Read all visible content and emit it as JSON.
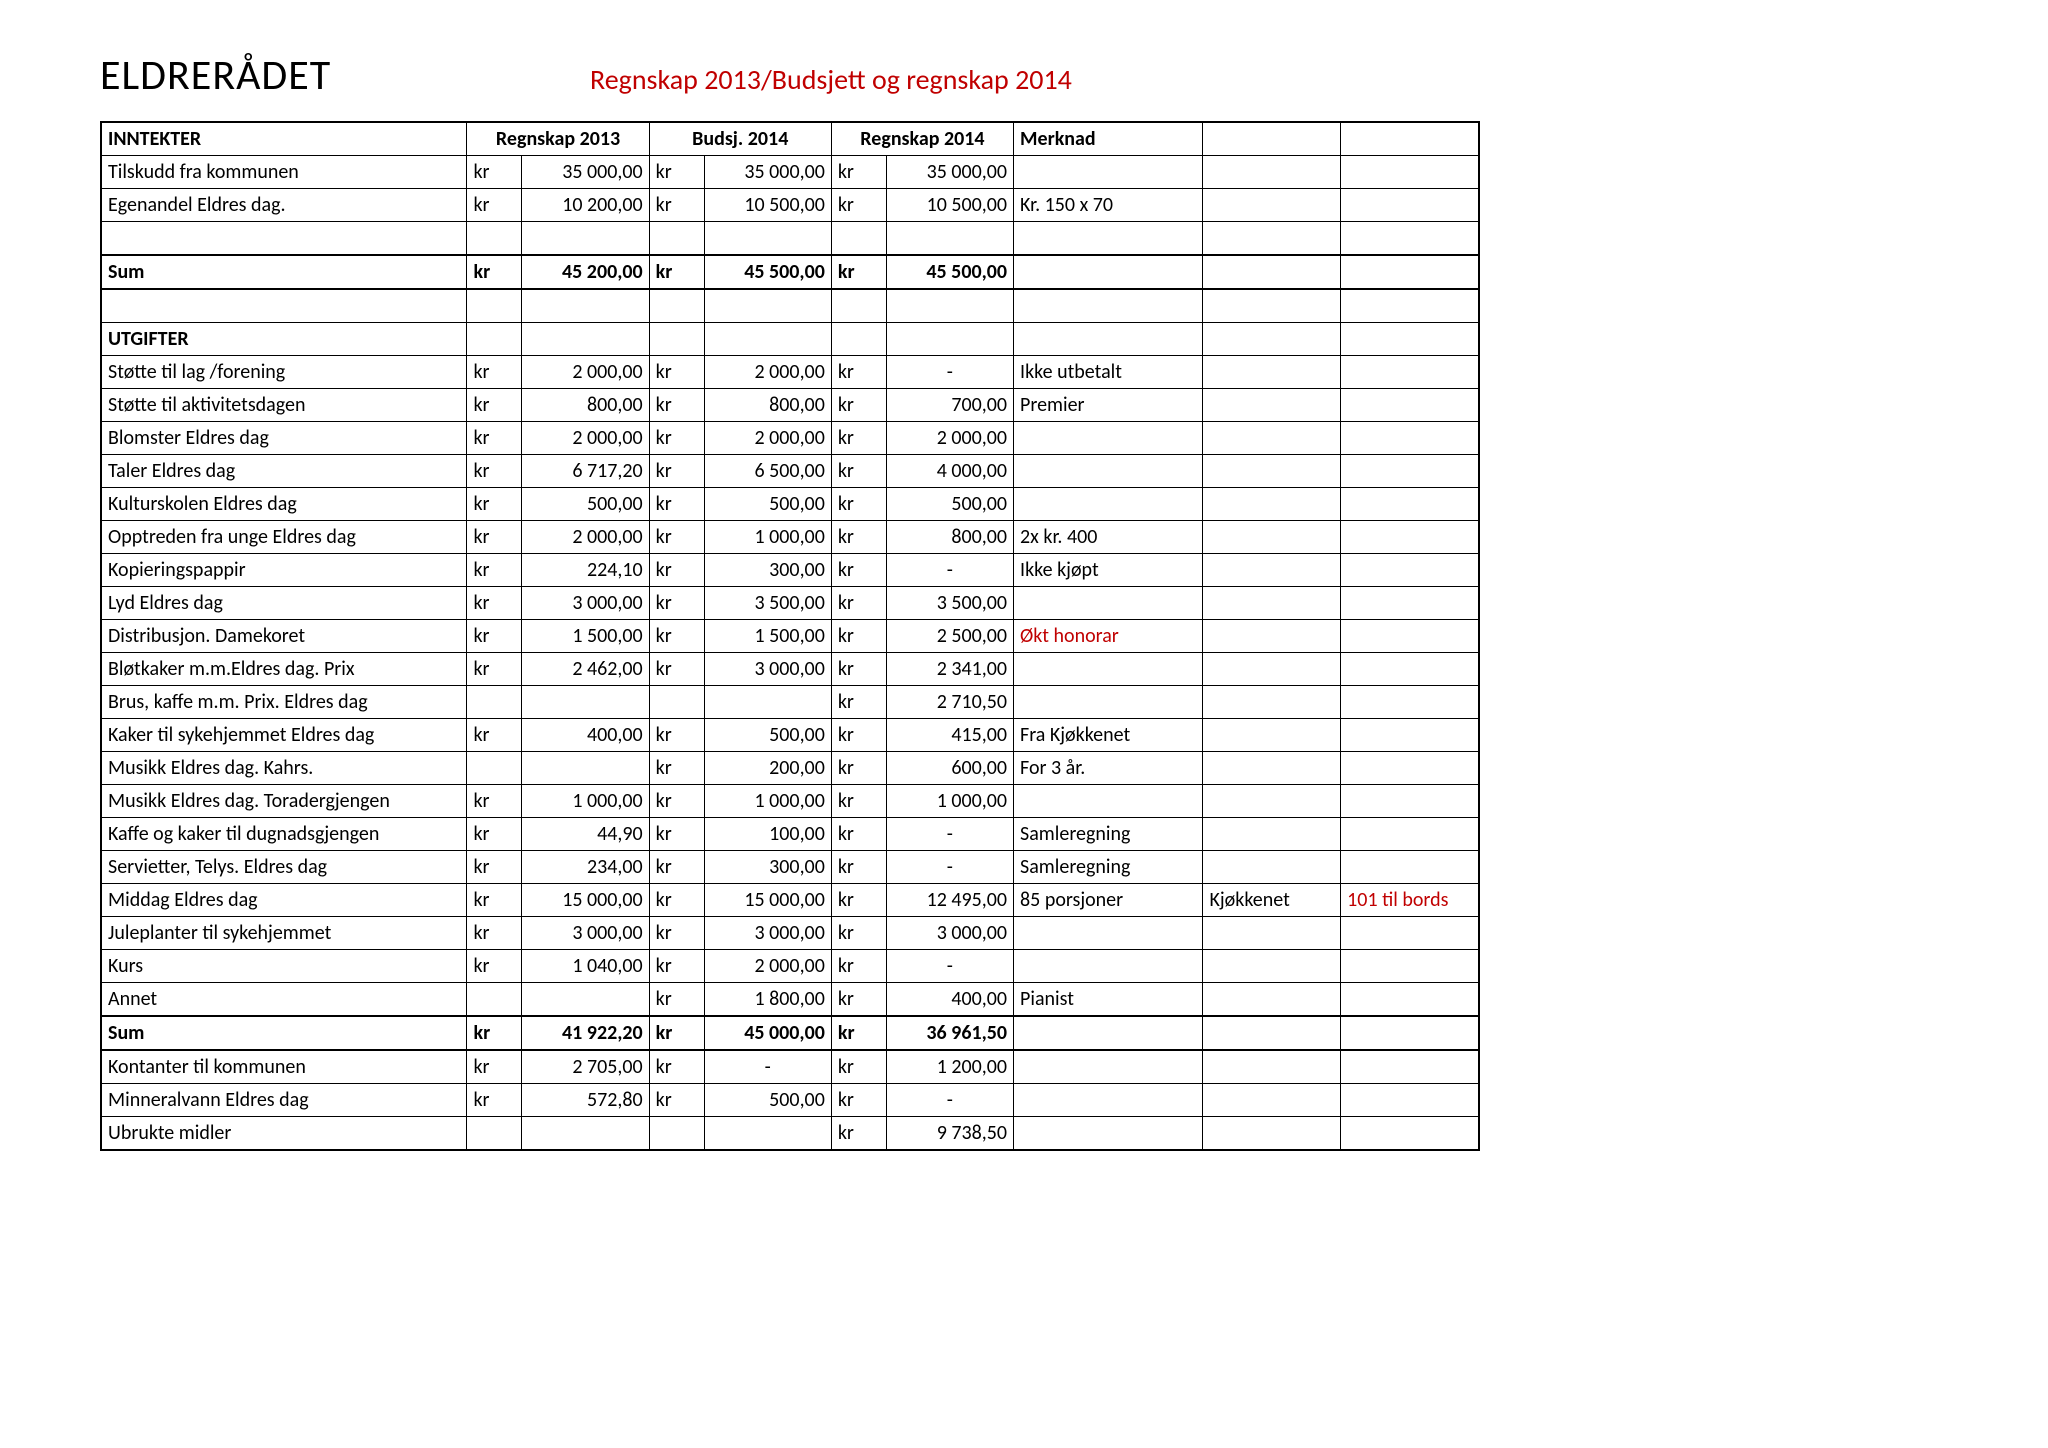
{
  "title": "ELDRERÅDET",
  "subtitle": "Regnskap 2013/Budsjett og regnskap 2014",
  "columns": {
    "c1": "INNTEKTER",
    "c2": "Regnskap 2013",
    "c3": "Budsj. 2014",
    "c4": "Regnskap 2014",
    "c5": "Merknad"
  },
  "utgifter_label": "UTGIFTER",
  "currency": "kr",
  "colors": {
    "text_red": "#c00000",
    "text_black": "#000000",
    "bg": "#ffffff",
    "border": "#000000"
  },
  "font": {
    "family": "Calibri, Arial, sans-serif",
    "title_size_pt": 32,
    "subtitle_size_pt": 20,
    "body_size_pt": 15
  },
  "rows": [
    {
      "label": "Tilskudd fra kommunen",
      "a1": "35 000,00",
      "a2": "35 000,00",
      "a3": "35 000,00",
      "note": "",
      "e1": "",
      "e2": ""
    },
    {
      "label": "Egenandel Eldres dag.",
      "a1": "10 200,00",
      "a2": "10 500,00",
      "a3": "10 500,00",
      "note": "Kr. 150 x 70",
      "e1": "",
      "e2": ""
    }
  ],
  "sum1": {
    "label": "Sum",
    "a1": "45 200,00",
    "a2": "45 500,00",
    "a3": "45 500,00"
  },
  "exp": [
    {
      "label": "Støtte til lag /forening",
      "a1": "2 000,00",
      "a2": "2 000,00",
      "a3c": "kr",
      "a3": "-",
      "note": "Ikke utbetalt",
      "e1": "",
      "e2": ""
    },
    {
      "label": "Støtte til aktivitetsdagen",
      "a1": "800,00",
      "a2": "800,00",
      "a3": "700,00",
      "note": "Premier",
      "e1": "",
      "e2": ""
    },
    {
      "label": "Blomster Eldres dag",
      "a1": "2 000,00",
      "a2": "2 000,00",
      "a3": "2 000,00",
      "note": "",
      "e1": "",
      "e2": ""
    },
    {
      "label": "Taler Eldres dag",
      "a1": "6 717,20",
      "a2": "6 500,00",
      "a3": "4 000,00",
      "note": "",
      "e1": "",
      "e2": ""
    },
    {
      "label": "Kulturskolen Eldres dag",
      "a1": "500,00",
      "a2": "500,00",
      "a3": "500,00",
      "note": "",
      "e1": "",
      "e2": ""
    },
    {
      "label": "Opptreden fra unge Eldres dag",
      "a1": "2 000,00",
      "a2": "1 000,00",
      "a3": "800,00",
      "note": "2x kr. 400",
      "e1": "",
      "e2": ""
    },
    {
      "label": "Kopieringspappir",
      "a1": "224,10",
      "a2": "300,00",
      "a3c": "kr",
      "a3": "-",
      "note": "Ikke kjøpt",
      "e1": "",
      "e2": ""
    },
    {
      "label": "Lyd Eldres dag",
      "a1": "3 000,00",
      "a2": "3 500,00",
      "a3": "3 500,00",
      "note": "",
      "e1": "",
      "e2": ""
    },
    {
      "label": "Distribusjon.  Damekoret",
      "a1": "1 500,00",
      "a2": "1 500,00",
      "a3": "2 500,00",
      "note": "Økt honorar",
      "note_red": true,
      "e1": "",
      "e2": ""
    },
    {
      "label": "Bløtkaker m.m.Eldres dag. Prix",
      "a1": "2 462,00",
      "a2": "3 000,00",
      "a3": "2 341,00",
      "note": "",
      "e1": "",
      "e2": ""
    },
    {
      "label": "Brus, kaffe m.m. Prix. Eldres dag",
      "a1c": "",
      "a1": "",
      "a2c": "",
      "a2": "",
      "a3": "2 710,50",
      "note": "",
      "e1": "",
      "e2": ""
    },
    {
      "label": "Kaker til sykehjemmet Eldres dag",
      "a1": "400,00",
      "a2": "500,00",
      "a3": "415,00",
      "note": "Fra Kjøkkenet",
      "e1": "",
      "e2": ""
    },
    {
      "label": "Musikk Eldres dag. Kahrs.",
      "a1c": "",
      "a1": "",
      "a2": "200,00",
      "a3": "600,00",
      "note": "For 3 år.",
      "e1": "",
      "e2": ""
    },
    {
      "label": "Musikk Eldres dag. Toradergjengen",
      "a1": "1 000,00",
      "a2": "1 000,00",
      "a3": "1 000,00",
      "note": "",
      "e1": "",
      "e2": ""
    },
    {
      "label": "Kaffe og kaker til dugnadsgjengen",
      "a1": "44,90",
      "a2": "100,00",
      "a3c": "kr",
      "a3": "-",
      "note": "Samleregning",
      "e1": "",
      "e2": ""
    },
    {
      "label": "Servietter, Telys. Eldres dag",
      "a1": "234,00",
      "a2": "300,00",
      "a3c": "kr",
      "a3": "-",
      "note": "Samleregning",
      "e1": "",
      "e2": ""
    },
    {
      "label": "Middag Eldres dag",
      "a1": "15 000,00",
      "a2": "15 000,00",
      "a3": "12 495,00",
      "note": "85 porsjoner",
      "e1": "Kjøkkenet",
      "e2": "101 til bords",
      "e2_red": true
    },
    {
      "label": "Juleplanter til sykehjemmet",
      "a1": "3 000,00",
      "a2": "3 000,00",
      "a3": "3 000,00",
      "note": "",
      "e1": "",
      "e2": ""
    },
    {
      "label": "Kurs",
      "a1": "1 040,00",
      "a2": "2 000,00",
      "a3c": "kr",
      "a3": "-",
      "note": "",
      "e1": "",
      "e2": ""
    },
    {
      "label": "Annet",
      "a1c": "",
      "a1": "",
      "a2": "1 800,00",
      "a3": "400,00",
      "note": "Pianist",
      "e1": "",
      "e2": ""
    }
  ],
  "sum2": {
    "label": "Sum",
    "a1": "41 922,20",
    "a2": "45 000,00",
    "a3": "36 961,50"
  },
  "tail": [
    {
      "label": "Kontanter til kommunen",
      "a1": "2 705,00",
      "a2c": "kr",
      "a2": "-",
      "a3": "1 200,00",
      "note": "",
      "e1": "",
      "e2": ""
    },
    {
      "label": "Minneralvann Eldres dag",
      "a1": "572,80",
      "a2": "500,00",
      "a3c": "kr",
      "a3": "-",
      "note": "",
      "e1": "",
      "e2": ""
    },
    {
      "label": "Ubrukte midler",
      "a1c": "",
      "a1": "",
      "a2c": "",
      "a2": "",
      "a3": "9 738,50",
      "note": "",
      "e1": "",
      "e2": ""
    }
  ]
}
